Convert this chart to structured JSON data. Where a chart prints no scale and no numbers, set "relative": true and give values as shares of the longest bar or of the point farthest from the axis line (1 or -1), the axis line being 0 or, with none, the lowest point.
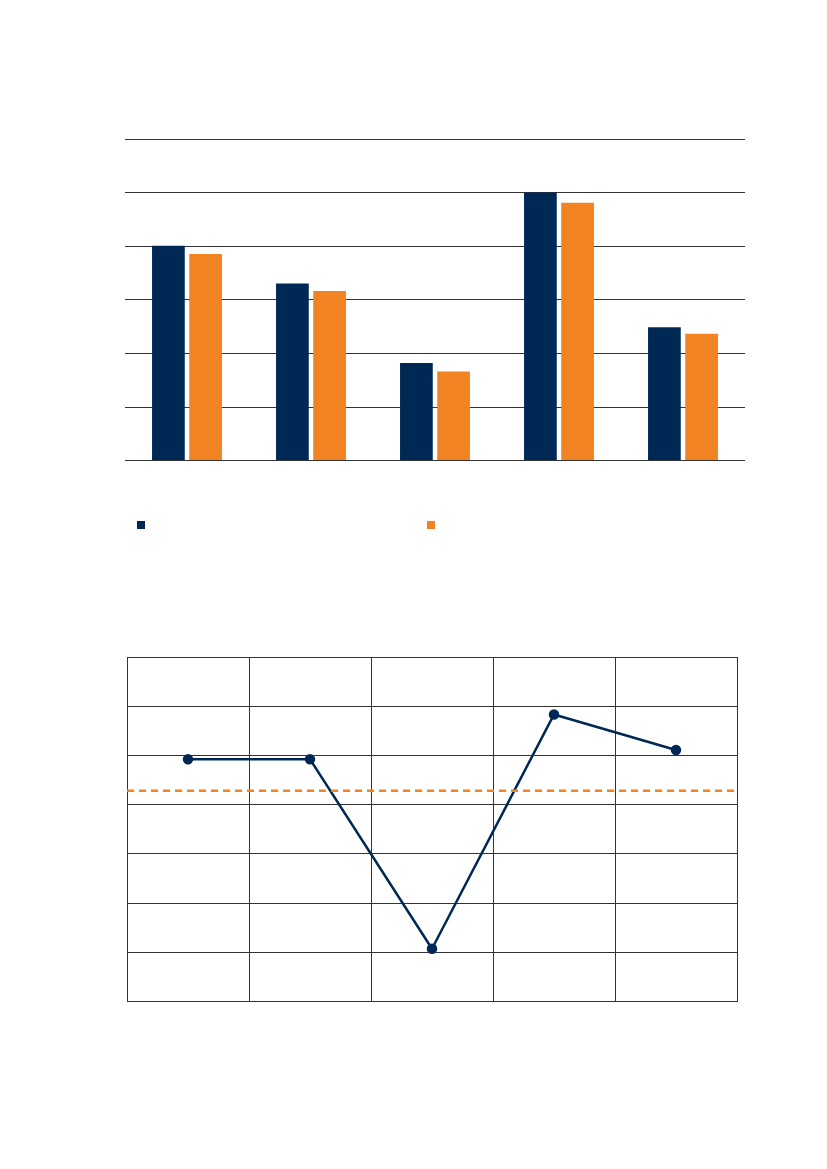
{
  "chart_data": [
    {
      "type": "bar",
      "relative": true,
      "categories": [
        null,
        null,
        null,
        null,
        null
      ],
      "series": [
        {
          "color": "#002855",
          "values": [
            0.802,
            0.661,
            0.364,
            1,
            0.498
          ]
        },
        {
          "color": "#f28322",
          "values": [
            0.771,
            0.633,
            0.332,
            0.962,
            0.473
          ]
        }
      ],
      "grid": "y"
    },
    {
      "type": "line",
      "relative": true,
      "categories": [
        null,
        null,
        null,
        null,
        null
      ],
      "series": [
        {
          "color": "#002855",
          "values": [
            0.844,
            0.844,
            0.184,
            1,
            0.876
          ]
        }
      ],
      "marker": "circle",
      "line_style": "solid",
      "grid": true,
      "ref_lines": [
        {
          "axis": "y",
          "value": 0.734,
          "color": "#f28322",
          "line_style": "dashed"
        }
      ]
    }
  ]
}
